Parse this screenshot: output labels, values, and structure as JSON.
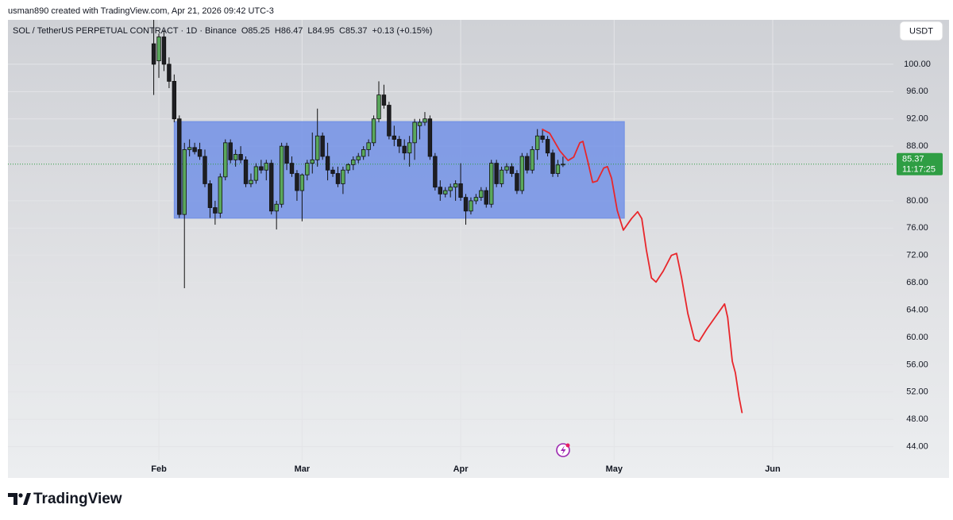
{
  "header": {
    "credit": "usman890 created with TradingView.com, Apr 21, 2026 09:42 UTC-3"
  },
  "chart_data": {
    "type": "candlestick",
    "symbol": "SOL / TetherUS PERPETUAL CONTRACT · 1D · Binance",
    "legend": [
      {
        "label": "O",
        "value": 85.25
      },
      {
        "label": "H",
        "value": 86.47
      },
      {
        "label": "L",
        "value": 84.95
      },
      {
        "label": "C",
        "value": 85.37
      }
    ],
    "change": "+0.13 (+0.15%)",
    "currency": "USDT",
    "x": [
      -1,
      0,
      1,
      2,
      3,
      4,
      5,
      6,
      7,
      8,
      9,
      10,
      11,
      12,
      13,
      14,
      15,
      16,
      17,
      18,
      19,
      20,
      21,
      22,
      23,
      24,
      25,
      26,
      27,
      28,
      29,
      30,
      31,
      32,
      33,
      34,
      35,
      36,
      37,
      38,
      39,
      40,
      41,
      42,
      43,
      44,
      45,
      46,
      47,
      48,
      49,
      50,
      51,
      52,
      53,
      54,
      55,
      56,
      57,
      58,
      59,
      60,
      61,
      62,
      63,
      64,
      65,
      66,
      67,
      68,
      69,
      70,
      71,
      72,
      73,
      74,
      75,
      76,
      77,
      78,
      79
    ],
    "open": [
      103,
      100.5,
      104,
      100,
      97.5,
      92,
      78,
      87.5,
      87.8,
      87.5,
      86.5,
      82.5,
      79,
      78.2,
      83.5,
      88.5,
      86,
      86.8,
      86,
      82.5,
      83,
      85,
      84.5,
      85.5,
      78.5,
      79.5,
      88,
      85.5,
      84,
      81.5,
      83.8,
      85.5,
      86,
      89.5,
      86.5,
      84.5,
      84,
      82.5,
      84.5,
      85.3,
      86,
      86.5,
      87.5,
      88.5,
      92,
      95.5,
      94,
      89.5,
      89,
      88,
      87,
      88.5,
      91,
      91.5,
      92,
      86.5,
      82,
      81,
      81.5,
      82,
      82.5,
      80.5,
      78.5,
      80,
      80.5,
      81.5,
      79.5,
      85.5,
      82.5,
      84.5,
      85,
      84,
      81.5,
      86.5,
      84.5,
      87.5,
      89.5,
      89,
      87,
      84,
      85.25
    ],
    "high": [
      106.5,
      104.5,
      105,
      101,
      98.5,
      92.5,
      88.5,
      89,
      88.5,
      88.5,
      87.5,
      83,
      80,
      84,
      89,
      89,
      87.5,
      88,
      86.5,
      84,
      85.5,
      86,
      86,
      86,
      80,
      88.5,
      88.5,
      86.5,
      84.5,
      84,
      86,
      90,
      93.5,
      90,
      88.5,
      85,
      85,
      85,
      85.5,
      86.5,
      87,
      88,
      89,
      92.5,
      97.5,
      97,
      94.5,
      91,
      89.5,
      89,
      89.5,
      92,
      92,
      93,
      92.5,
      87,
      83,
      82,
      82.5,
      83,
      85.5,
      81,
      80.5,
      81,
      82,
      82,
      86,
      86,
      85,
      85.5,
      85.5,
      84.5,
      87,
      87,
      88,
      90.5,
      90.5,
      89.5,
      87.5,
      86,
      86.47
    ],
    "low": [
      95.5,
      98,
      99,
      96.5,
      91.5,
      77.5,
      67.2,
      86.5,
      86.8,
      86,
      82,
      77.5,
      76.5,
      77.5,
      83,
      85.5,
      85,
      85.5,
      82,
      82,
      82.5,
      84,
      83,
      78,
      75.8,
      79,
      84.5,
      83.5,
      80,
      77,
      83,
      84,
      85,
      86,
      83,
      83.5,
      82,
      81,
      84,
      84.5,
      85.5,
      86,
      86.5,
      88,
      91.5,
      93.5,
      89,
      88,
      87,
      86,
      85,
      86,
      89,
      91,
      86,
      81.5,
      80,
      80.5,
      80.5,
      80,
      80,
      76.5,
      78,
      79.5,
      80,
      79,
      79,
      82,
      82,
      84,
      83.5,
      81,
      81,
      84,
      84,
      86,
      88.5,
      86.5,
      83.5,
      83.5,
      84.95
    ],
    "close": [
      100,
      104,
      100,
      97.5,
      92,
      78,
      87.5,
      87.8,
      87.2,
      86.5,
      82.5,
      79,
      78.2,
      83.5,
      88.5,
      86,
      86.8,
      86,
      82.5,
      83,
      85,
      84.5,
      85.5,
      78.5,
      79.5,
      88,
      85.5,
      84,
      81.5,
      83.8,
      85.5,
      86,
      89.5,
      86.5,
      84.5,
      84,
      82.5,
      84.5,
      85.3,
      86,
      86.5,
      87.5,
      88.5,
      92,
      95.5,
      94,
      89.5,
      89,
      88,
      87,
      88.5,
      91.5,
      91.5,
      92,
      86.5,
      82,
      81,
      81.5,
      82,
      82.5,
      80.5,
      78.5,
      80,
      80.5,
      81.5,
      79.5,
      85.5,
      82.5,
      84.5,
      85,
      84,
      81.5,
      86.5,
      84.5,
      87.5,
      89.5,
      89,
      87,
      84,
      85.25,
      85.37
    ],
    "colors": {
      "up": "#5aa85c",
      "down": "#1e1e22",
      "outline": "#111111"
    },
    "xlim": [
      -29.5,
      143.6
    ],
    "xticks": [
      {
        "value": 0,
        "label": "Feb"
      },
      {
        "value": 28,
        "label": "Mar"
      },
      {
        "value": 59,
        "label": "Apr"
      },
      {
        "value": 89,
        "label": "May"
      },
      {
        "value": 120,
        "label": "Jun"
      }
    ],
    "ylim": [
      39.65,
      106.5
    ],
    "yticks": [
      {
        "value": 100,
        "label": "100.00"
      },
      {
        "value": 96,
        "label": "96.00"
      },
      {
        "value": 92,
        "label": "92.00"
      },
      {
        "value": 88,
        "label": "88.00"
      },
      {
        "value": 80,
        "label": "80.00"
      },
      {
        "value": 76,
        "label": "76.00"
      },
      {
        "value": 72,
        "label": "72.00"
      },
      {
        "value": 68,
        "label": "68.00"
      },
      {
        "value": 64,
        "label": "64.00"
      },
      {
        "value": 60,
        "label": "60.00"
      },
      {
        "value": 56,
        "label": "56.00"
      },
      {
        "value": 52,
        "label": "52.00"
      },
      {
        "value": 48,
        "label": "48.00"
      },
      {
        "value": 44,
        "label": "44.00"
      }
    ],
    "grid": true,
    "last_price": {
      "value": 85.37,
      "countdown": "11:17:25",
      "color": "#2f9e44"
    },
    "box": {
      "x": [
        3,
        91
      ],
      "y": [
        77.45,
        91.6
      ],
      "color": "#6f8fe6"
    },
    "projection": {
      "color": "#e8262b",
      "x": [
        75.0,
        76.4,
        78.4,
        80.0,
        81.1,
        82.3,
        82.9,
        83.9,
        84.8,
        85.7,
        86.96,
        87.7,
        88.5,
        89.6,
        90.8,
        92.4,
        93.6,
        94.4,
        95.3,
        96.3,
        97.2,
        98.6,
        100.2,
        101.2,
        102.2,
        103.4,
        104.7,
        105.6,
        107.1,
        108.7,
        110.6,
        111.2,
        112.1,
        112.7,
        113.4,
        114.0
      ],
      "values": [
        90.47,
        89.9,
        87.3,
        85.9,
        86.4,
        88.5,
        88.7,
        85.6,
        82.7,
        82.9,
        84.8,
        85.0,
        83.3,
        78.6,
        75.7,
        77.4,
        78.4,
        77.4,
        72.8,
        68.7,
        68.1,
        69.7,
        72.0,
        72.3,
        68.7,
        63.5,
        59.7,
        59.4,
        61.2,
        62.9,
        64.9,
        62.9,
        56.5,
        54.8,
        51.3,
        49.0
      ]
    }
  },
  "footer": {
    "brand": "TradingView"
  }
}
